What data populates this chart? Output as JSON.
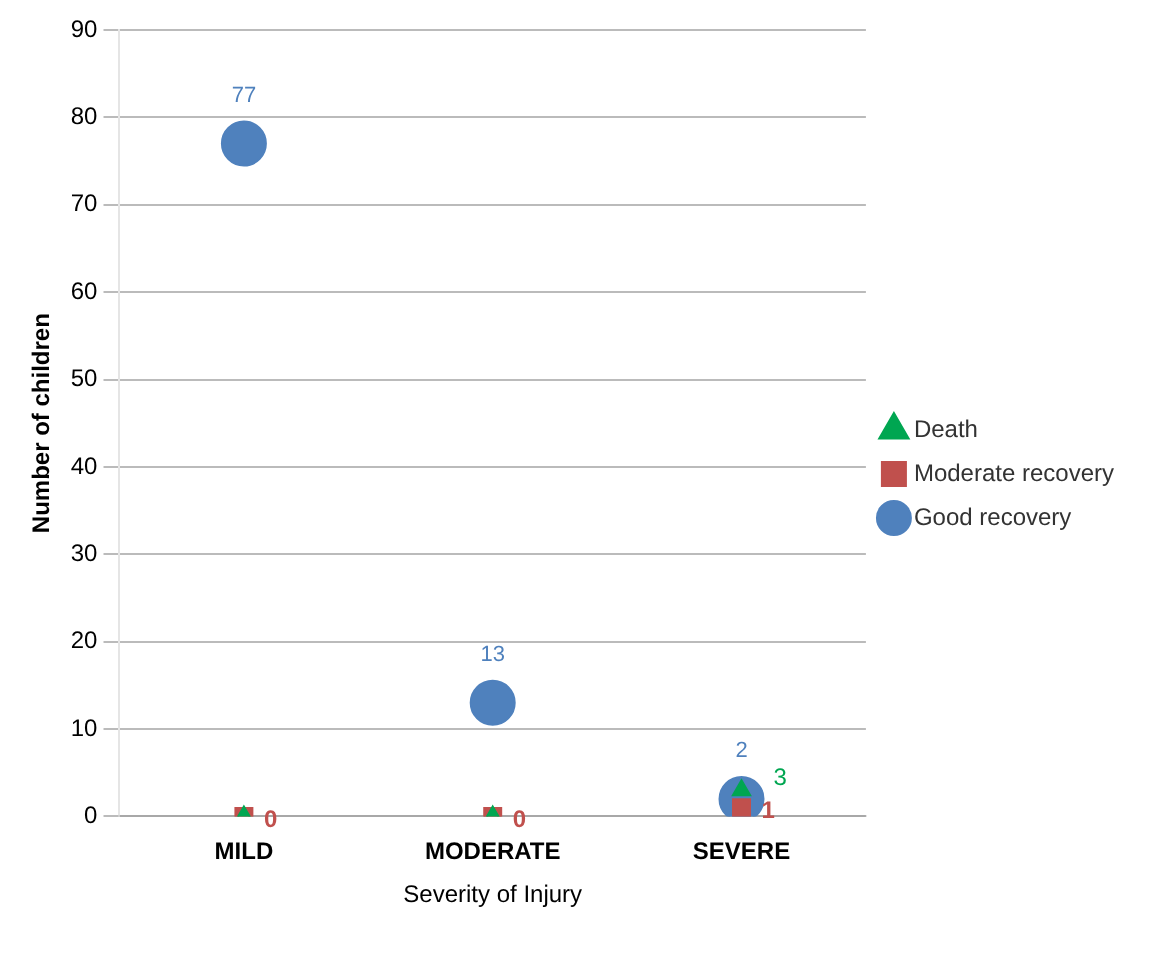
{
  "chart_data": {
    "type": "scatter",
    "xlabel": "Severity of Injury",
    "ylabel": "Number of children",
    "categories": [
      "MILD",
      "MODERATE",
      "SEVERE"
    ],
    "ylim": [
      0,
      90
    ],
    "yticks": [
      0,
      10,
      20,
      30,
      40,
      50,
      60,
      70,
      80,
      90
    ],
    "grid": "y",
    "legend": "right",
    "series": [
      {
        "name": "Good recovery",
        "color": "#4f81bd",
        "marker": "circle",
        "values": [
          77,
          13,
          2
        ],
        "value_labels": [
          "77",
          "13",
          "2"
        ]
      },
      {
        "name": "Moderate recovery",
        "color": "#c0504d",
        "marker": "square",
        "values": [
          0,
          0,
          1
        ],
        "value_labels": [
          "0",
          "0",
          "1"
        ]
      },
      {
        "name": "Death",
        "color": "#00a651",
        "marker": "triangle",
        "values": [
          0,
          0,
          3
        ],
        "value_labels": [
          null,
          null,
          "3"
        ]
      }
    ]
  }
}
